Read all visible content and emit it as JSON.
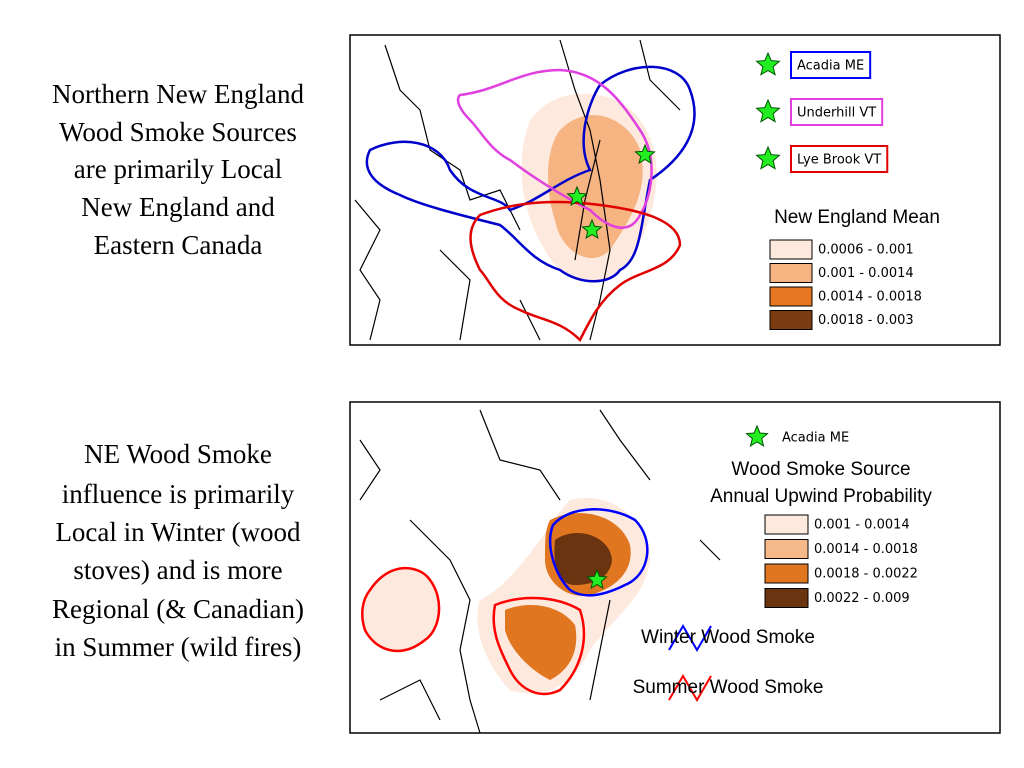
{
  "panels": [
    {
      "caption_lines": [
        "Northern New England",
        "Wood Smoke Sources",
        "are primarily Local",
        "New England and",
        "Eastern Canada"
      ],
      "map": {
        "stations": [
          {
            "label": "Acadia ME",
            "color": "#0000ff"
          },
          {
            "label": "Underhill VT",
            "color": "#e040e0"
          },
          {
            "label": "Lye Brook VT",
            "color": "#e00000"
          }
        ],
        "legend_title": "New England Mean",
        "classes": [
          {
            "label": "0.0006 - 0.001",
            "color": "#fde9dd"
          },
          {
            "label": "0.001 - 0.0014",
            "color": "#f6b482"
          },
          {
            "label": "0.0014 - 0.0018",
            "color": "#e87722"
          },
          {
            "label": "0.0018 - 0.003",
            "color": "#7a3b10"
          }
        ]
      }
    },
    {
      "caption_lines": [
        "NE Wood Smoke",
        "influence is primarily",
        "Local in Winter (wood",
        "stoves) and is more",
        "Regional (& Canadian)",
        "in Summer (wild fires)"
      ],
      "map": {
        "stations": [
          {
            "label": "Acadia ME",
            "color": "#000000"
          }
        ],
        "legend_title_lines": [
          "Wood Smoke Source",
          "Annual Upwind Probability"
        ],
        "classes": [
          {
            "label": "0.001 - 0.0014",
            "color": "#fde9dd"
          },
          {
            "label": "0.0014 - 0.0018",
            "color": "#f5b98a"
          },
          {
            "label": "0.0018 - 0.0022",
            "color": "#e0761f"
          },
          {
            "label": "0.0022 - 0.009",
            "color": "#6b3410"
          }
        ],
        "lines": [
          {
            "label": "Winter Wood Smoke",
            "color": "#0000ff"
          },
          {
            "label": "Summer Wood Smoke",
            "color": "#ff0000"
          }
        ]
      }
    }
  ]
}
